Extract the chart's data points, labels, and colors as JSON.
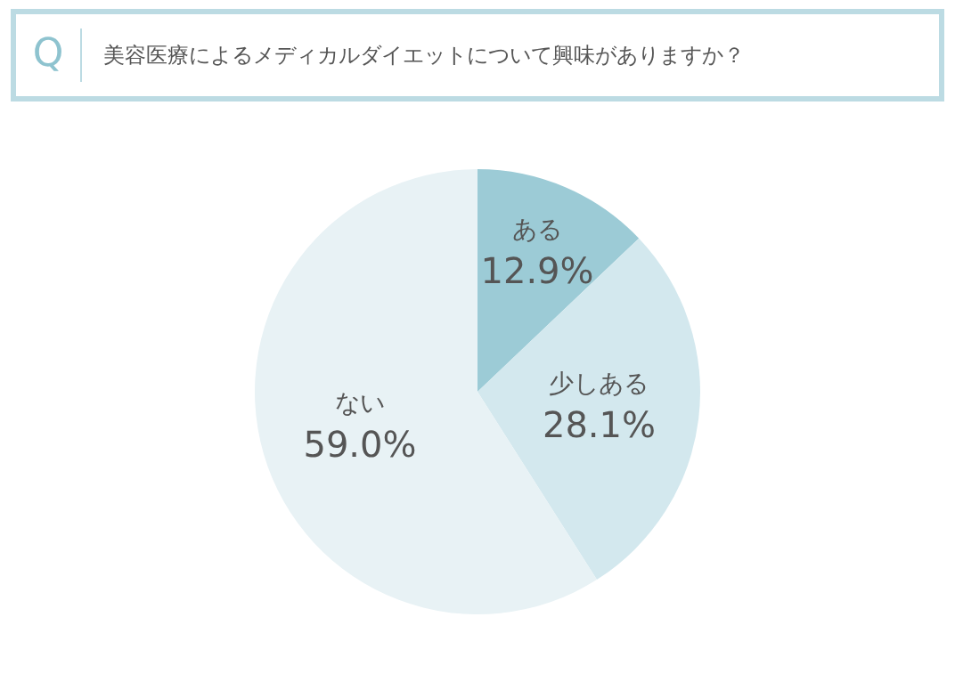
{
  "chart_data": {
    "type": "pie",
    "title": "美容医療によるメディカルダイエットについて興味がありますか？",
    "annotations": [
      "Q"
    ],
    "categories": [
      "ある",
      "少しある",
      "ない"
    ],
    "values": [
      12.9,
      28.1,
      59.0
    ],
    "colors": [
      "#9ccbd6",
      "#d3e8ee",
      "#e8f2f5"
    ],
    "value_labels": [
      "12.9%",
      "28.1%",
      "59.0%"
    ],
    "legend": false
  }
}
